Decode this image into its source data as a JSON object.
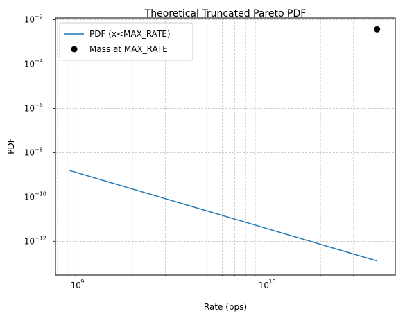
{
  "chart_data": {
    "type": "line",
    "title": "Theoretical Truncated Pareto PDF",
    "xlabel": "Rate (bps)",
    "ylabel": "PDF",
    "xscale": "log",
    "yscale": "log",
    "xlim": [
      780000000.0,
      50000000000.0
    ],
    "ylim": [
      3e-14,
      0.012
    ],
    "x_major_ticks": [
      {
        "value": 1000000000.0,
        "base": "10",
        "exp": "9"
      },
      {
        "value": 10000000000.0,
        "base": "10",
        "exp": "10"
      }
    ],
    "y_major_ticks": [
      {
        "value": 1e-12,
        "base": "10",
        "exp": "−12"
      },
      {
        "value": 1e-10,
        "base": "10",
        "exp": "−10"
      },
      {
        "value": 1e-08,
        "base": "10",
        "exp": "−8"
      },
      {
        "value": 1e-06,
        "base": "10",
        "exp": "−6"
      },
      {
        "value": 0.0001,
        "base": "10",
        "exp": "−4"
      },
      {
        "value": 0.01,
        "base": "10",
        "exp": "−2"
      }
    ],
    "grid": true,
    "legend_position": "upper-left",
    "series": [
      {
        "name": "PDF (x<MAX_RATE)",
        "kind": "line",
        "color": "#1f77b4",
        "x": [
          920000000.0,
          40000000000.0
        ],
        "y": [
          1.6e-09,
          1.3e-13
        ]
      },
      {
        "name": "Mass at MAX_RATE",
        "kind": "point",
        "color": "#000000",
        "x": [
          40000000000.0
        ],
        "y": [
          0.0037
        ]
      }
    ]
  }
}
